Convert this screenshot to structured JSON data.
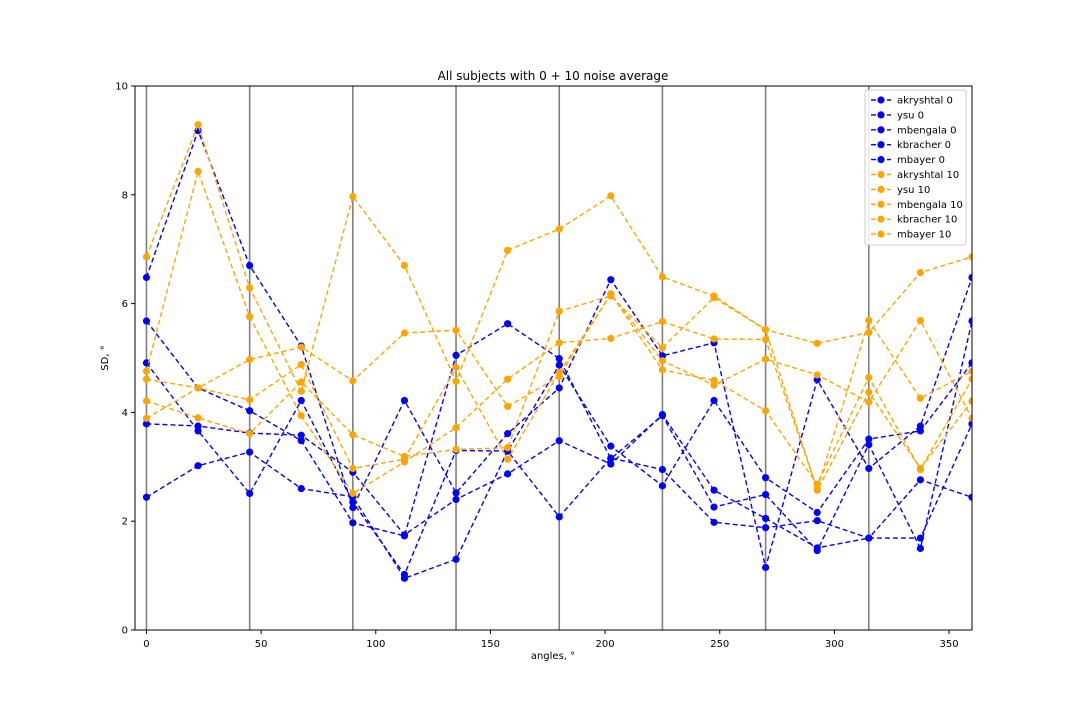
{
  "chart_data": {
    "type": "line",
    "title": "All subjects with 0 + 10 noise average",
    "xlabel": "angles, °",
    "ylabel": "SD, °",
    "xlim": [
      -5,
      360
    ],
    "ylim": [
      0,
      10
    ],
    "xticks": [
      0,
      50,
      100,
      150,
      200,
      250,
      300,
      350
    ],
    "yticks": [
      0,
      2,
      4,
      6,
      8,
      10
    ],
    "vertical_lines": [
      0,
      45,
      90,
      135,
      180,
      225,
      270,
      315
    ],
    "legend_position": "top-right",
    "line_style": "dashed with circle markers",
    "x": [
      0,
      22.5,
      45,
      67.5,
      90,
      112.5,
      135,
      157.5,
      180,
      202.5,
      225,
      247.5,
      270,
      292.5,
      315,
      337.5,
      360
    ],
    "series": [
      {
        "name": "akryshtal 0",
        "color": "#0000ff",
        "values": [
          6.48,
          9.18,
          6.7,
          5.22,
          2.25,
          4.22,
          2.52,
          3.61,
          4.45,
          6.44,
          5.04,
          5.28,
          1.15,
          4.6,
          2.97,
          3.75,
          6.48
        ]
      },
      {
        "name": "ysu 0",
        "color": "#0000ff",
        "values": [
          5.68,
          4.45,
          4.03,
          3.48,
          1.97,
          1.73,
          5.05,
          5.63,
          4.99,
          3.15,
          3.94,
          2.26,
          2.49,
          1.46,
          3.41,
          1.5,
          5.68
        ]
      },
      {
        "name": "mbengala 0",
        "color": "#0000ff",
        "values": [
          4.91,
          3.66,
          2.51,
          4.22,
          2.35,
          1.02,
          3.3,
          3.29,
          4.87,
          3.38,
          2.65,
          4.22,
          2.8,
          2.16,
          3.51,
          3.66,
          4.91
        ]
      },
      {
        "name": "kbracher 0",
        "color": "#0000ff",
        "values": [
          3.79,
          3.75,
          3.62,
          3.58,
          2.9,
          1.75,
          2.4,
          2.87,
          3.48,
          3.05,
          3.96,
          2.57,
          2.05,
          1.51,
          1.69,
          1.69,
          3.79
        ]
      },
      {
        "name": "mbayer 0",
        "color": "#0000ff",
        "values": [
          2.44,
          3.02,
          3.27,
          2.6,
          2.45,
          0.95,
          1.3,
          3.29,
          2.08,
          3.16,
          2.95,
          1.98,
          1.88,
          2.01,
          1.69,
          2.76,
          2.44
        ]
      },
      {
        "name": "akryshtal 10",
        "color": "#ffa500",
        "values": [
          6.86,
          9.29,
          6.29,
          4.39,
          7.97,
          6.7,
          4.57,
          6.98,
          7.37,
          7.98,
          6.49,
          6.14,
          5.52,
          5.27,
          5.47,
          6.57,
          6.86
        ]
      },
      {
        "name": "ysu 10",
        "color": "#ffa500",
        "values": [
          4.76,
          8.43,
          5.76,
          3.94,
          2.51,
          3.09,
          3.72,
          4.61,
          5.28,
          5.36,
          5.67,
          5.35,
          5.34,
          2.59,
          5.69,
          4.26,
          4.76
        ]
      },
      {
        "name": "mbengala 10",
        "color": "#ffa500",
        "values": [
          4.61,
          4.45,
          4.97,
          5.2,
          4.58,
          5.46,
          5.51,
          4.11,
          4.66,
          6.18,
          4.78,
          4.59,
          4.03,
          2.68,
          4.64,
          2.95,
          4.61
        ]
      },
      {
        "name": "kbracher 10",
        "color": "#ffa500",
        "values": [
          4.21,
          3.9,
          3.61,
          4.56,
          3.59,
          3.19,
          3.32,
          3.35,
          5.86,
          6.14,
          5.19,
          6.11,
          5.52,
          2.57,
          4.37,
          2.97,
          4.21
        ]
      },
      {
        "name": "mbayer 10",
        "color": "#ffa500",
        "values": [
          3.89,
          4.45,
          4.23,
          4.88,
          2.97,
          3.14,
          4.83,
          3.14,
          4.73,
          6.17,
          4.95,
          4.5,
          4.98,
          4.69,
          4.19,
          5.69,
          3.89
        ]
      }
    ]
  }
}
